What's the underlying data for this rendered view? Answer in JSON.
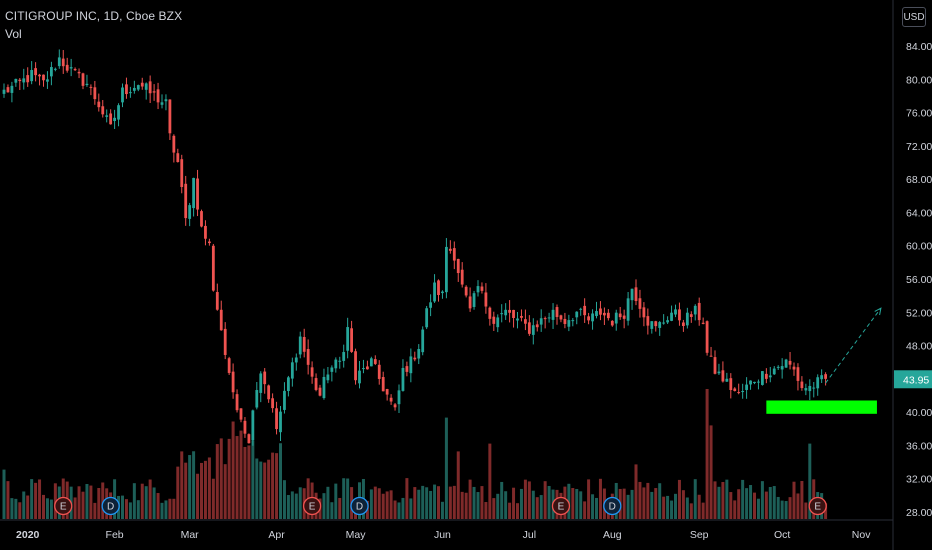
{
  "header": {
    "symbol_line": "CITIGROUP INC, 1D, Cboe BZX",
    "indicator": "Vol",
    "currency_button": "USD"
  },
  "colors": {
    "background": "#000000",
    "up": "#26a69a",
    "down": "#ef5350",
    "vol_up": "#1d5f58",
    "vol_down": "#7f2a2a",
    "target_zone": "#00ff00",
    "price_label_bg": "#26a69a",
    "projection": "#26a69a"
  },
  "chart_data": {
    "type": "candlestick",
    "title": "CITIGROUP INC, 1D, Cboe BZX",
    "y_axis": {
      "ticks": [
        84,
        80,
        76,
        72,
        68,
        64,
        60,
        56,
        52,
        48,
        44,
        40,
        36,
        32,
        28
      ],
      "tick_labels": [
        "84.00",
        "80.00",
        "76.00",
        "72.00",
        "68.00",
        "64.00",
        "60.00",
        "56.00",
        "52.00",
        "48.00",
        "44.00",
        "40.00",
        "36.00",
        "32.00",
        "28.00"
      ],
      "ylim": [
        27,
        87
      ]
    },
    "x_axis": {
      "labels": [
        "2020",
        "Feb",
        "Mar",
        "Apr",
        "May",
        "Jun",
        "Jul",
        "Aug",
        "Sep",
        "Oct",
        "Nov"
      ],
      "label_bar_index": [
        6,
        28,
        47,
        69,
        89,
        111,
        133,
        154,
        176,
        197,
        217
      ]
    },
    "last_price": "43.95",
    "earnings_markers": [
      {
        "bar": 15,
        "type": "E",
        "color": "#ef5350"
      },
      {
        "bar": 27,
        "type": "D",
        "color": "#2196f3"
      },
      {
        "bar": 78,
        "type": "E",
        "color": "#ef5350"
      },
      {
        "bar": 90,
        "type": "D",
        "color": "#2196f3"
      },
      {
        "bar": 141,
        "type": "E",
        "color": "#ef5350"
      },
      {
        "bar": 154,
        "type": "D",
        "color": "#2196f3"
      },
      {
        "bar": 206,
        "type": "E",
        "color": "#ef5350"
      }
    ],
    "target_zone": {
      "bar_start": 193,
      "bar_end": 221,
      "price_low": 39.8,
      "price_high": 41.4
    },
    "projection": {
      "from_bar": 208,
      "from_price": 43.5,
      "to_bar": 222,
      "to_price": 52.5
    },
    "anchors": [
      [
        0,
        78.5
      ],
      [
        4,
        79.5
      ],
      [
        7,
        80.5
      ],
      [
        10,
        79.5
      ],
      [
        14,
        82.5
      ],
      [
        18,
        80.5
      ],
      [
        21,
        79.5
      ],
      [
        24,
        77
      ],
      [
        27,
        74
      ],
      [
        30,
        78.5
      ],
      [
        34,
        79.5
      ],
      [
        38,
        78
      ],
      [
        41,
        77
      ],
      [
        42,
        73
      ],
      [
        44,
        70
      ],
      [
        46,
        63
      ],
      [
        48,
        68
      ],
      [
        50,
        62
      ],
      [
        52,
        60
      ],
      [
        53,
        55
      ],
      [
        55,
        50
      ],
      [
        57,
        44
      ],
      [
        59,
        41
      ],
      [
        61,
        38
      ],
      [
        62,
        36
      ],
      [
        63,
        41
      ],
      [
        65,
        45
      ],
      [
        67,
        42
      ],
      [
        69,
        38
      ],
      [
        72,
        44
      ],
      [
        75,
        49
      ],
      [
        78,
        44
      ],
      [
        80,
        42
      ],
      [
        82,
        45
      ],
      [
        85,
        46
      ],
      [
        87,
        50
      ],
      [
        89,
        44
      ],
      [
        91,
        45
      ],
      [
        93,
        46
      ],
      [
        95,
        44
      ],
      [
        97,
        42
      ],
      [
        99,
        40
      ],
      [
        101,
        45
      ],
      [
        103,
        46
      ],
      [
        105,
        48
      ],
      [
        107,
        52
      ],
      [
        109,
        55
      ],
      [
        111,
        54
      ],
      [
        112,
        60
      ],
      [
        114,
        59
      ],
      [
        116,
        55
      ],
      [
        118,
        52
      ],
      [
        120,
        55
      ],
      [
        122,
        53
      ],
      [
        124,
        51
      ],
      [
        127,
        52
      ],
      [
        130,
        51
      ],
      [
        133,
        50
      ],
      [
        136,
        51
      ],
      [
        139,
        52
      ],
      [
        142,
        51
      ],
      [
        145,
        52
      ],
      [
        148,
        51
      ],
      [
        151,
        52
      ],
      [
        154,
        51
      ],
      [
        157,
        52
      ],
      [
        159,
        55
      ],
      [
        161,
        53
      ],
      [
        163,
        51
      ],
      [
        165,
        50
      ],
      [
        167,
        51
      ],
      [
        169,
        52
      ],
      [
        172,
        51
      ],
      [
        175,
        52
      ],
      [
        177,
        51
      ],
      [
        178,
        47
      ],
      [
        180,
        45
      ],
      [
        182,
        44
      ],
      [
        184,
        43
      ],
      [
        186,
        42
      ],
      [
        188,
        43
      ],
      [
        190,
        44
      ],
      [
        192,
        44.5
      ],
      [
        194,
        45
      ],
      [
        196,
        45.5
      ],
      [
        198,
        46
      ],
      [
        200,
        45
      ],
      [
        202,
        43
      ],
      [
        204,
        43
      ],
      [
        206,
        43.5
      ],
      [
        208,
        44
      ]
    ],
    "volume_spikes": [
      [
        0,
        0.38
      ],
      [
        14,
        0.25
      ],
      [
        45,
        0.52
      ],
      [
        55,
        0.62
      ],
      [
        58,
        0.75
      ],
      [
        60,
        0.68
      ],
      [
        63,
        0.6
      ],
      [
        112,
        0.78
      ],
      [
        115,
        0.52
      ],
      [
        123,
        0.58
      ],
      [
        160,
        0.42
      ],
      [
        178,
        1.0
      ],
      [
        179,
        0.72
      ],
      [
        204,
        0.58
      ]
    ]
  }
}
